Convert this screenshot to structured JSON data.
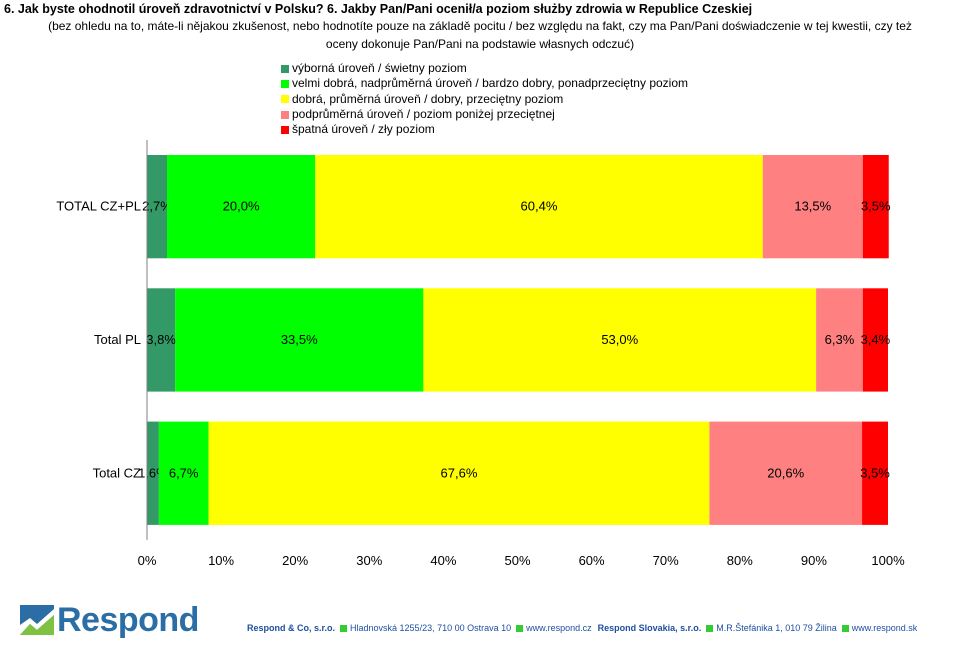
{
  "title": "6. Jak byste ohodnotil úroveň zdravotnictví v Polsku? 6. Jakby Pan/Pani ocenił/a poziom służby zdrowia w Republice Czeskiej",
  "subtitle": "(bez ohledu na to, máte-li nějakou zkušenost, nebo hodnotíte pouze na základě pocitu / bez względu na fakt, czy ma Pan/Pani doświadczenie w tej kwestii, czy też oceny dokonuje Pan/Pani na podstawie własnych odczuć)",
  "colors": {
    "excellent": "#339966",
    "very_good": "#00ff00",
    "good": "#ffff00",
    "below_avg": "#ff8080",
    "poor": "#ff0000",
    "brand_blue": "#2b6ea6",
    "footer_blue": "#1f4fa0",
    "footer_square": "#33cc33"
  },
  "chart_data": {
    "type": "bar",
    "orientation": "horizontal",
    "stacked": true,
    "percent_scale": true,
    "categories": [
      "TOTAL CZ+PL",
      "Total PL",
      "Total CZ"
    ],
    "series": [
      {
        "name": "výborná úroveň / świetny poziom",
        "color": "#339966",
        "values": [
          2.7,
          3.8,
          1.6
        ],
        "labels": [
          "2,7%",
          "3,8%",
          "1,6%"
        ]
      },
      {
        "name": "velmi dobrá, nadprůměrná úroveň / bardzo dobry, ponadprzeciętny poziom",
        "color": "#00ff00",
        "values": [
          20.0,
          33.5,
          6.7
        ],
        "labels": [
          "20,0%",
          "33,5%",
          "6,7%"
        ]
      },
      {
        "name": "dobrá, průměrná úroveň / dobry, przeciętny poziom",
        "color": "#ffff00",
        "values": [
          60.4,
          53.0,
          67.6
        ],
        "labels": [
          "60,4%",
          "53,0%",
          "67,6%"
        ]
      },
      {
        "name": "podprůměrná úroveň / poziom poniżej przeciętnej",
        "color": "#ff8080",
        "values": [
          13.5,
          6.3,
          20.6
        ],
        "labels": [
          "13,5%",
          "6,3%",
          "20,6%"
        ]
      },
      {
        "name": "špatná úroveň / zły poziom",
        "color": "#ff0000",
        "values": [
          3.5,
          3.4,
          3.5
        ],
        "labels": [
          "3,5%",
          "3,4%",
          "3,5%"
        ]
      }
    ],
    "xlim": [
      0,
      100
    ],
    "ticks": [
      "0%",
      "10%",
      "20%",
      "30%",
      "40%",
      "50%",
      "60%",
      "70%",
      "80%",
      "90%",
      "100%"
    ],
    "grid": false,
    "legend": "top-center"
  },
  "logo": {
    "text": "Respond"
  },
  "footer": {
    "company_cz": "Respond & Co, s.r.o.",
    "address_cz": "Hladnovská 1255/23, 710 00  Ostrava 10",
    "web_cz": "www.respond.cz",
    "company_sk": "Respond Slovakia, s.r.o.",
    "address_sk": "M.R.Štefánika 1, 010 79  Žilina",
    "web_sk": "www.respond.sk"
  }
}
